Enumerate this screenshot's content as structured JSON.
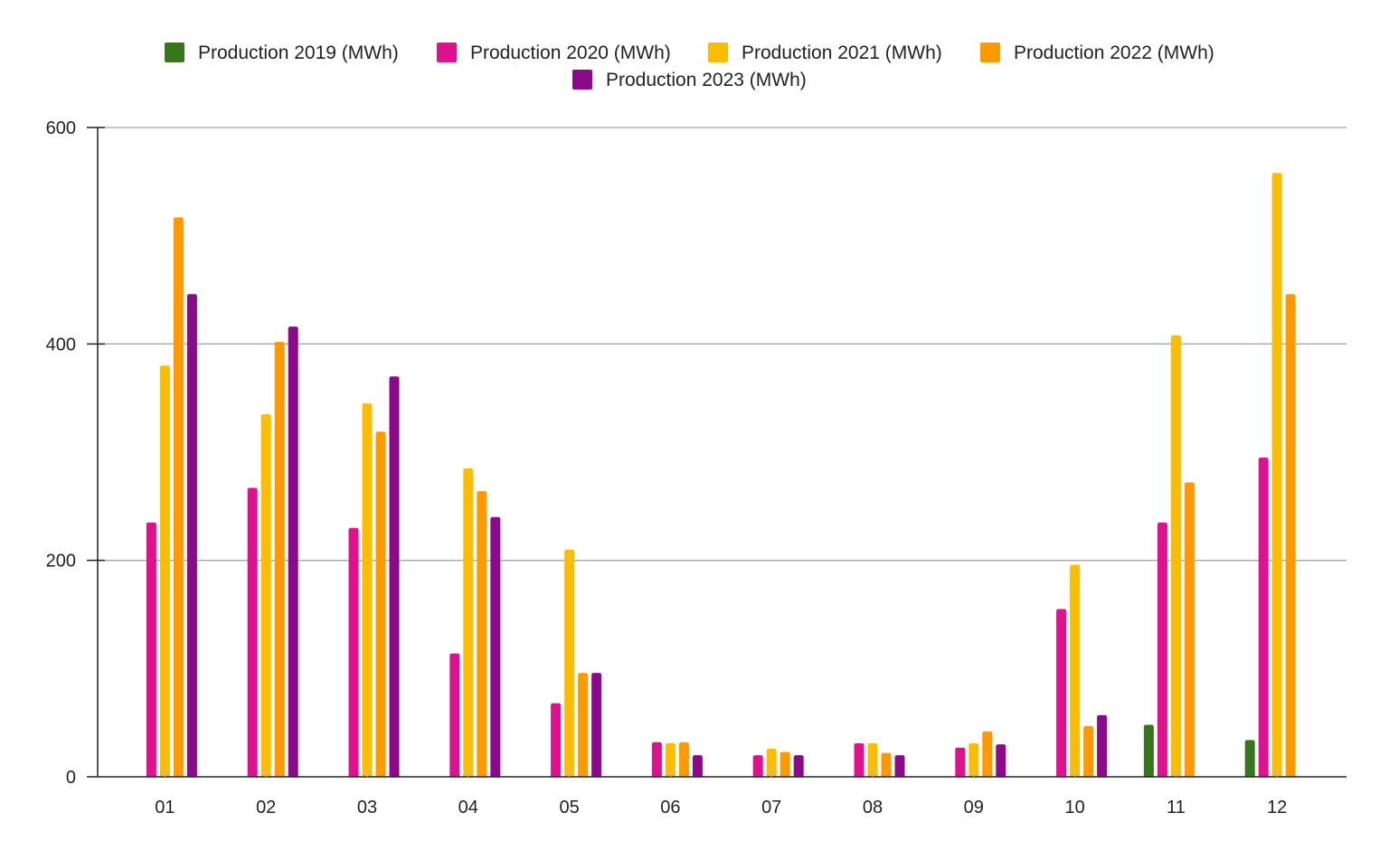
{
  "chart_data": {
    "type": "bar",
    "categories": [
      "01",
      "02",
      "03",
      "04",
      "05",
      "06",
      "07",
      "08",
      "09",
      "10",
      "11",
      "12"
    ],
    "series": [
      {
        "name": "Production 2019 (MWh)",
        "color": "#38761d",
        "values": [
          null,
          null,
          null,
          null,
          null,
          null,
          null,
          null,
          null,
          null,
          48,
          34
        ]
      },
      {
        "name": "Production 2020 (MWh)",
        "color": "#e0118c",
        "values": [
          235,
          267,
          230,
          114,
          68,
          32,
          20,
          31,
          27,
          155,
          235,
          295
        ]
      },
      {
        "name": "Production 2021 (MWh)",
        "color": "#fbbc04",
        "values": [
          380,
          335,
          345,
          285,
          210,
          31,
          26,
          31,
          31,
          196,
          408,
          558
        ]
      },
      {
        "name": "Production 2022 (MWh)",
        "color": "#ff9900",
        "values": [
          517,
          402,
          319,
          264,
          96,
          32,
          23,
          22,
          42,
          47,
          272,
          446
        ]
      },
      {
        "name": "Production 2023 (MWh)",
        "color": "#8b0a8b",
        "values": [
          446,
          416,
          370,
          240,
          96,
          20,
          20,
          20,
          30,
          57,
          null,
          null
        ]
      }
    ],
    "ylim": [
      0,
      600
    ],
    "yticks": [
      0,
      200,
      400,
      600
    ],
    "grid": true,
    "legend_position": "top-center",
    "title": "",
    "xlabel": "",
    "ylabel": ""
  }
}
